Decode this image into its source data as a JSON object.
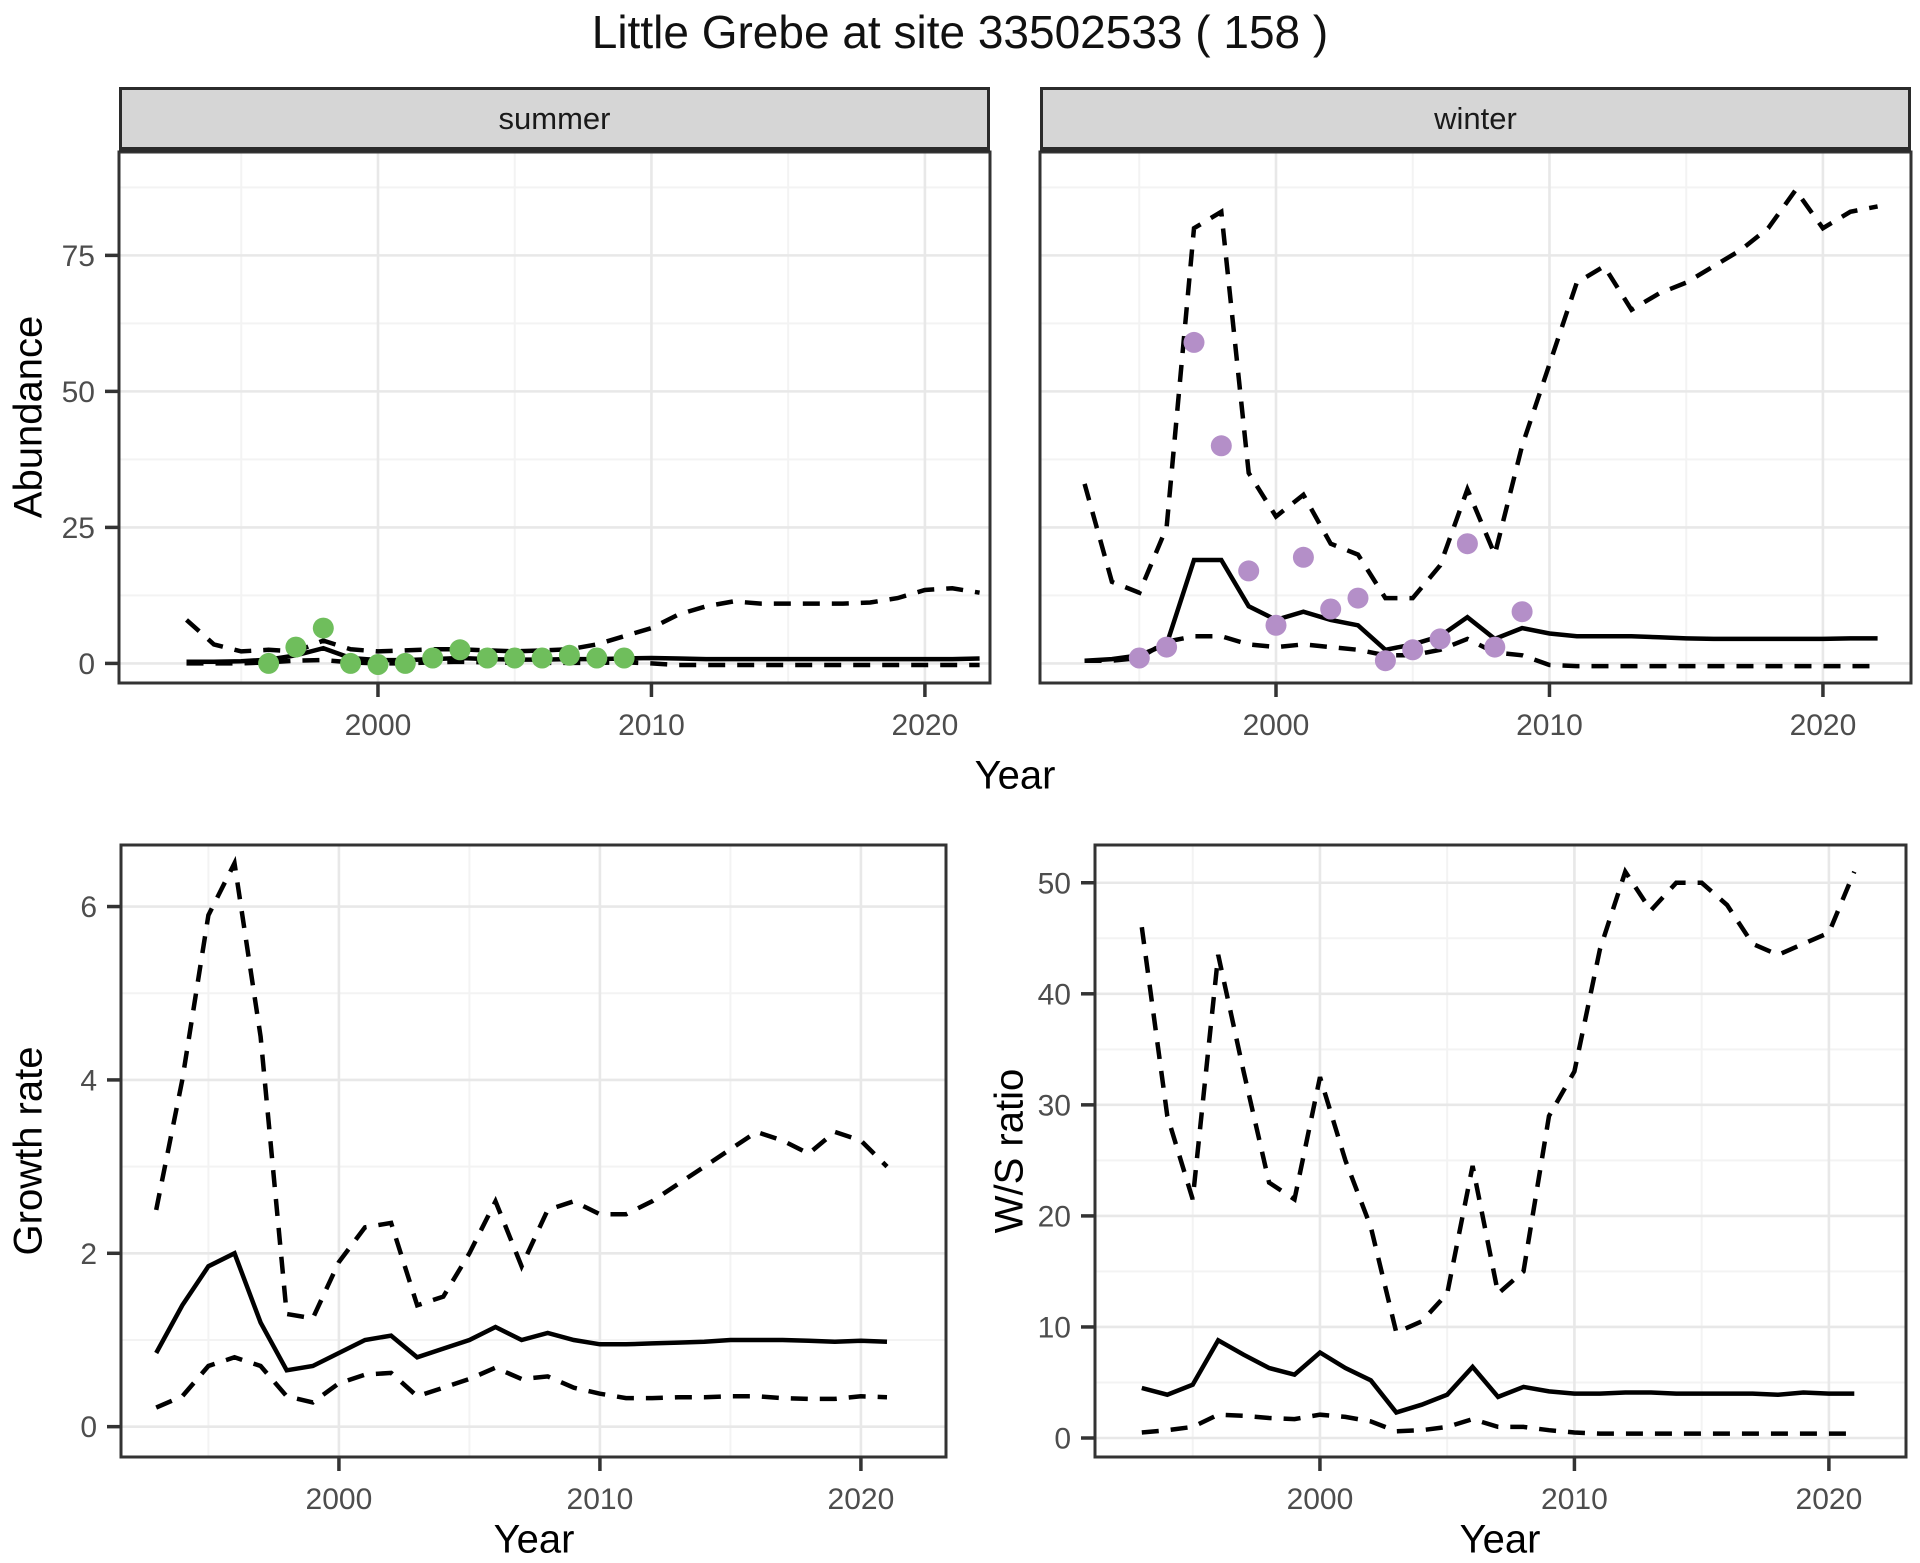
{
  "title": "Little Grebe at site 33502533 ( 158 )",
  "colors": {
    "summer_points": "#6FBE5C",
    "winter_points": "#B48FC8",
    "line": "#000000",
    "strip_bg": "#D6D6D6",
    "grid_major": "#E8E8E8",
    "grid_minor": "#F3F3F3",
    "panel_border": "#333333",
    "tick_text": "#4D4D4D"
  },
  "chart_data": [
    {
      "id": "abundance_summer",
      "type": "line",
      "facet_label": "summer",
      "ylabel": "Abundance",
      "xlabel": "Year",
      "x": [
        1993,
        1994,
        1995,
        1996,
        1997,
        1998,
        1999,
        2000,
        2001,
        2002,
        2003,
        2004,
        2005,
        2006,
        2007,
        2008,
        2009,
        2010,
        2011,
        2012,
        2013,
        2014,
        2015,
        2016,
        2017,
        2018,
        2019,
        2020,
        2021,
        2022
      ],
      "series": [
        {
          "name": "median",
          "linetype": "solid",
          "values": [
            0.3,
            0.3,
            0.4,
            0.7,
            1.5,
            2.8,
            1.0,
            0.6,
            0.6,
            0.8,
            1.0,
            0.8,
            0.7,
            0.7,
            0.8,
            0.8,
            0.9,
            1.0,
            0.9,
            0.8,
            0.8,
            0.8,
            0.8,
            0.8,
            0.8,
            0.8,
            0.8,
            0.8,
            0.8,
            0.9
          ]
        },
        {
          "name": "upper_ci",
          "linetype": "dashed",
          "values": [
            8.0,
            3.5,
            2.2,
            2.5,
            2.2,
            4.2,
            2.6,
            2.2,
            2.4,
            2.6,
            2.6,
            2.4,
            2.2,
            2.4,
            2.6,
            3.5,
            5.0,
            6.5,
            9.0,
            10.5,
            11.4,
            11.0,
            11.0,
            11.0,
            11.0,
            11.2,
            12.0,
            13.5,
            13.8,
            13.0
          ]
        },
        {
          "name": "lower_ci",
          "linetype": "dashed",
          "values": [
            0,
            0,
            0,
            0.2,
            0.5,
            0.6,
            0.2,
            0,
            0,
            0.2,
            0.3,
            0.2,
            0.1,
            0.1,
            0.1,
            0.1,
            0.2,
            0,
            -0.3,
            -0.3,
            -0.3,
            -0.3,
            -0.3,
            -0.3,
            -0.3,
            -0.3,
            -0.3,
            -0.3,
            -0.3,
            -0.3
          ]
        }
      ],
      "points": {
        "name": "observed_counts",
        "color_key": "summer_points",
        "x": [
          1996,
          1997,
          1998,
          1999,
          2000,
          2001,
          2002,
          2003,
          2004,
          2005,
          2006,
          2007,
          2008,
          2009
        ],
        "y": [
          0,
          3,
          6.5,
          0,
          -0.2,
          0,
          1,
          2.5,
          1,
          1,
          1,
          1.5,
          1,
          1
        ]
      },
      "xticks": [
        2000,
        2010,
        2020
      ],
      "xticks_minor": [
        1995,
        2005,
        2015
      ],
      "yticks": [
        0,
        25,
        50,
        75
      ],
      "yticks_minor": [
        12.5,
        37.5,
        62.5,
        87.5
      ],
      "xlim": [
        1990.53,
        2022.38
      ],
      "ylim": [
        -3.6,
        94.0
      ],
      "show_ytick_labels": true
    },
    {
      "id": "abundance_winter",
      "type": "line",
      "facet_label": "winter",
      "ylabel": "Abundance",
      "xlabel": "Year",
      "x": [
        1993,
        1994,
        1995,
        1996,
        1997,
        1998,
        1999,
        2000,
        2001,
        2002,
        2003,
        2004,
        2005,
        2006,
        2007,
        2008,
        2009,
        2010,
        2011,
        2012,
        2013,
        2014,
        2015,
        2016,
        2017,
        2018,
        2019,
        2020,
        2021,
        2022
      ],
      "series": [
        {
          "name": "median",
          "linetype": "solid",
          "values": [
            0.5,
            0.8,
            1.5,
            3.5,
            19,
            19,
            10.5,
            8,
            9.5,
            8,
            7,
            2.5,
            3.5,
            5,
            8.5,
            4.5,
            6.5,
            5.5,
            5,
            5,
            5,
            4.8,
            4.6,
            4.5,
            4.5,
            4.5,
            4.5,
            4.5,
            4.6,
            4.6
          ]
        },
        {
          "name": "upper_ci",
          "linetype": "dashed",
          "values": [
            33,
            15,
            13,
            25,
            80,
            83,
            35,
            27,
            31,
            22,
            20,
            12,
            12,
            18,
            32,
            20,
            40,
            55,
            70,
            73,
            65,
            68,
            70,
            73,
            76,
            80,
            87,
            80,
            83,
            84
          ]
        },
        {
          "name": "lower_ci",
          "linetype": "dashed",
          "values": [
            0.5,
            0.5,
            1,
            4,
            5,
            5,
            3.5,
            3,
            3.5,
            3,
            2.5,
            1.5,
            1.5,
            2.5,
            4.5,
            2,
            1.5,
            -0.3,
            -0.5,
            -0.5,
            -0.5,
            -0.5,
            -0.5,
            -0.5,
            -0.5,
            -0.5,
            -0.5,
            -0.5,
            -0.5,
            -0.5
          ]
        }
      ],
      "points": {
        "name": "observed_counts",
        "color_key": "winter_points",
        "x": [
          1995,
          1996,
          1997,
          1998,
          1999,
          2000,
          2001,
          2002,
          2003,
          2004,
          2005,
          2006,
          2007,
          2008,
          2009
        ],
        "y": [
          1,
          3,
          59,
          40,
          17,
          7,
          19.5,
          10,
          12,
          0.5,
          2.5,
          4.5,
          22,
          3,
          9.5
        ]
      },
      "xticks": [
        2000,
        2010,
        2020
      ],
      "xticks_minor": [
        1995,
        2005,
        2015
      ],
      "yticks": [
        0,
        25,
        50,
        75
      ],
      "yticks_minor": [
        12.5,
        37.5,
        62.5,
        87.5
      ],
      "xlim": [
        1991.37,
        2023.22
      ],
      "ylim": [
        -3.6,
        94.0
      ],
      "show_ytick_labels": false
    },
    {
      "id": "growth_rate",
      "type": "line",
      "facet_label": "",
      "ylabel": "Growth rate",
      "xlabel": "Year",
      "x": [
        1993,
        1994,
        1995,
        1996,
        1997,
        1998,
        1999,
        2000,
        2001,
        2002,
        2003,
        2004,
        2005,
        2006,
        2007,
        2008,
        2009,
        2010,
        2011,
        2012,
        2013,
        2014,
        2015,
        2016,
        2017,
        2018,
        2019,
        2020,
        2021
      ],
      "series": [
        {
          "name": "median",
          "linetype": "solid",
          "values": [
            0.85,
            1.4,
            1.85,
            2.0,
            1.2,
            0.65,
            0.7,
            0.85,
            1.0,
            1.05,
            0.8,
            0.9,
            1.0,
            1.15,
            1.0,
            1.08,
            1.0,
            0.95,
            0.95,
            0.96,
            0.97,
            0.98,
            1.0,
            1.0,
            1.0,
            0.99,
            0.98,
            0.99,
            0.98
          ]
        },
        {
          "name": "upper_ci",
          "linetype": "dashed",
          "values": [
            2.5,
            4.0,
            5.9,
            6.5,
            4.5,
            1.3,
            1.25,
            1.9,
            2.3,
            2.35,
            1.4,
            1.5,
            2.0,
            2.6,
            1.85,
            2.5,
            2.6,
            2.45,
            2.45,
            2.6,
            2.8,
            3.0,
            3.2,
            3.4,
            3.3,
            3.15,
            3.4,
            3.3,
            3.0
          ]
        },
        {
          "name": "lower_ci",
          "linetype": "dashed",
          "values": [
            0.22,
            0.35,
            0.7,
            0.8,
            0.7,
            0.35,
            0.28,
            0.5,
            0.6,
            0.62,
            0.35,
            0.45,
            0.55,
            0.68,
            0.55,
            0.58,
            0.45,
            0.38,
            0.33,
            0.33,
            0.34,
            0.34,
            0.35,
            0.35,
            0.33,
            0.32,
            0.32,
            0.35,
            0.34
          ]
        }
      ],
      "points": null,
      "xticks": [
        2000,
        2010,
        2020
      ],
      "xticks_minor": [
        1995,
        2005,
        2015
      ],
      "yticks": [
        0,
        2,
        4,
        6
      ],
      "yticks_minor": [
        1,
        3,
        5
      ],
      "xlim": [
        1991.65,
        2023.26
      ],
      "ylim": [
        -0.35,
        6.71
      ],
      "show_ytick_labels": true
    },
    {
      "id": "ws_ratio",
      "type": "line",
      "facet_label": "",
      "ylabel": "W/S ratio",
      "xlabel": "Year",
      "x": [
        1993,
        1994,
        1995,
        1996,
        1997,
        1998,
        1999,
        2000,
        2001,
        2002,
        2003,
        2004,
        2005,
        2006,
        2007,
        2008,
        2009,
        2010,
        2011,
        2012,
        2013,
        2014,
        2015,
        2016,
        2017,
        2018,
        2019,
        2020,
        2021
      ],
      "series": [
        {
          "name": "median",
          "linetype": "solid",
          "values": [
            4.5,
            3.9,
            4.8,
            8.8,
            7.5,
            6.3,
            5.7,
            7.7,
            6.3,
            5.2,
            2.3,
            3.0,
            3.9,
            6.4,
            3.7,
            4.6,
            4.2,
            4.0,
            4.0,
            4.1,
            4.1,
            4.0,
            4.0,
            4.0,
            4.0,
            3.9,
            4.1,
            4.0,
            4.0
          ]
        },
        {
          "name": "upper_ci",
          "linetype": "dashed",
          "values": [
            46,
            29,
            21.5,
            43.5,
            33,
            23,
            21.5,
            32.5,
            25,
            19,
            9.5,
            10.5,
            13,
            24.5,
            13,
            15,
            29,
            33,
            44,
            51,
            47.5,
            50,
            50,
            48,
            44.5,
            43.5,
            44.5,
            45.5,
            51
          ]
        },
        {
          "name": "lower_ci",
          "linetype": "dashed",
          "values": [
            0.5,
            0.7,
            1.0,
            2.1,
            2.0,
            1.8,
            1.7,
            2.1,
            1.9,
            1.5,
            0.6,
            0.7,
            1.0,
            1.7,
            1.0,
            1.0,
            0.7,
            0.5,
            0.4,
            0.4,
            0.4,
            0.4,
            0.4,
            0.4,
            0.4,
            0.4,
            0.4,
            0.4,
            0.4
          ]
        }
      ],
      "points": null,
      "xticks": [
        2000,
        2010,
        2020
      ],
      "xticks_minor": [
        1995,
        2005,
        2015
      ],
      "yticks": [
        0,
        10,
        20,
        30,
        40,
        50
      ],
      "yticks_minor": [
        5,
        15,
        25,
        35,
        45
      ],
      "xlim": [
        1991.16,
        2023.03
      ],
      "ylim": [
        -1.71,
        53.4
      ],
      "show_ytick_labels": true
    }
  ]
}
